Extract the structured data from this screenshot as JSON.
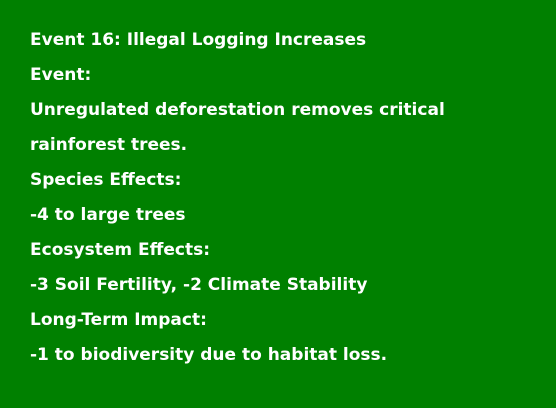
{
  "event_card": {
    "background_color": "#008000",
    "text_color": "#ffffff",
    "title": "Event 16: Illegal Logging Increases",
    "event_label": "Event:",
    "event_description_line1": "Unregulated deforestation removes critical",
    "event_description_line2": "rainforest trees.",
    "species_effects_label": "Species Effects:",
    "species_effects_value": "-4 to large trees",
    "ecosystem_effects_label": "Ecosystem Effects:",
    "ecosystem_effects_value": "-3 Soil Fertility, -2 Climate Stability",
    "long_term_impact_label": "Long-Term Impact:",
    "long_term_impact_value": "-1 to biodiversity due to habitat loss."
  }
}
